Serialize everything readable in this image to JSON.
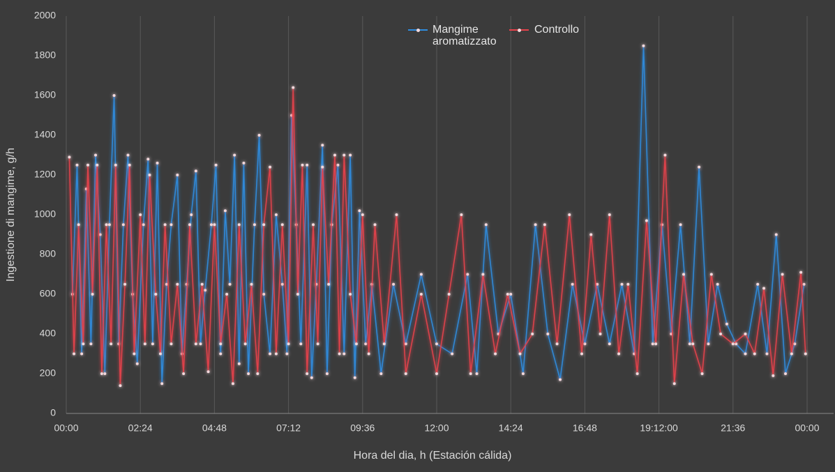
{
  "chart_data": {
    "type": "line",
    "xlabel": "Hora del dia, h (Estación cálida)",
    "ylabel": "Ingestione di mangime, g/h",
    "xlim": [
      0,
      24
    ],
    "ylim": [
      0,
      2000
    ],
    "xticks": [
      {
        "value": 0,
        "label": "00:00"
      },
      {
        "value": 2.4,
        "label": "02:24"
      },
      {
        "value": 4.8,
        "label": "04:48"
      },
      {
        "value": 7.2,
        "label": "07:12"
      },
      {
        "value": 9.6,
        "label": "09:36"
      },
      {
        "value": 12,
        "label": "12:00"
      },
      {
        "value": 14.4,
        "label": "14:24"
      },
      {
        "value": 16.8,
        "label": "16:48"
      },
      {
        "value": 19.2,
        "label": "19:12:00"
      },
      {
        "value": 21.6,
        "label": "21:36"
      },
      {
        "value": 24,
        "label": "00:00"
      }
    ],
    "yticks": [
      0,
      200,
      400,
      600,
      800,
      1000,
      1200,
      1400,
      1600,
      1800,
      2000
    ],
    "grid": true,
    "legend": "top",
    "series": [
      {
        "name": "Mangime aromatizzato",
        "color": "#2f8de0",
        "x": [
          0.2,
          0.35,
          0.5,
          0.65,
          0.8,
          0.95,
          1.1,
          1.25,
          1.4,
          1.55,
          1.7,
          1.85,
          2.0,
          2.15,
          2.3,
          2.5,
          2.65,
          2.8,
          2.95,
          3.1,
          3.25,
          3.4,
          3.6,
          3.75,
          3.9,
          4.05,
          4.2,
          4.35,
          4.5,
          4.7,
          4.85,
          5.0,
          5.15,
          5.3,
          5.45,
          5.6,
          5.75,
          5.9,
          6.1,
          6.25,
          6.4,
          6.6,
          6.8,
          7.0,
          7.15,
          7.3,
          7.45,
          7.6,
          7.8,
          7.95,
          8.1,
          8.3,
          8.45,
          8.6,
          8.8,
          9.0,
          9.2,
          9.35,
          9.5,
          9.7,
          9.9,
          10.2,
          10.6,
          11.0,
          11.5,
          12.0,
          12.5,
          13.0,
          13.3,
          13.6,
          14.0,
          14.4,
          14.8,
          15.2,
          15.6,
          16.0,
          16.4,
          16.8,
          17.2,
          17.6,
          18.0,
          18.4,
          18.7,
          19.0,
          19.3,
          19.6,
          19.9,
          20.2,
          20.5,
          20.8,
          21.1,
          21.4,
          21.7,
          22.0,
          22.4,
          22.7,
          23.0,
          23.3,
          23.6,
          23.9
        ],
        "values": [
          600,
          1250,
          300,
          1130,
          350,
          1300,
          900,
          200,
          950,
          1600,
          350,
          950,
          1300,
          600,
          250,
          950,
          1280,
          350,
          1260,
          150,
          650,
          950,
          1200,
          300,
          650,
          1000,
          1220,
          350,
          620,
          950,
          1250,
          300,
          1020,
          650,
          1300,
          250,
          1260,
          200,
          950,
          1400,
          600,
          300,
          1000,
          650,
          300,
          1500,
          950,
          350,
          1250,
          180,
          650,
          1350,
          200,
          950,
          1250,
          300,
          1300,
          180,
          1020,
          350,
          650,
          200,
          650,
          350,
          700,
          350,
          300,
          700,
          200,
          950,
          400,
          600,
          200,
          950,
          400,
          170,
          650,
          350,
          650,
          350,
          650,
          300,
          1850,
          350,
          950,
          400,
          950,
          350,
          1240,
          350,
          650,
          450,
          350,
          300,
          650,
          300,
          900,
          200,
          350,
          650
        ]
      },
      {
        "name": "Controllo",
        "color": "#e8414b",
        "x": [
          0.1,
          0.25,
          0.4,
          0.55,
          0.7,
          0.85,
          1.0,
          1.15,
          1.3,
          1.45,
          1.6,
          1.75,
          1.9,
          2.05,
          2.2,
          2.4,
          2.55,
          2.7,
          2.9,
          3.05,
          3.2,
          3.4,
          3.6,
          3.8,
          4.0,
          4.2,
          4.4,
          4.6,
          4.8,
          5.0,
          5.2,
          5.4,
          5.6,
          5.8,
          6.0,
          6.2,
          6.4,
          6.6,
          6.8,
          7.0,
          7.2,
          7.35,
          7.5,
          7.65,
          7.8,
          8.0,
          8.15,
          8.3,
          8.5,
          8.7,
          8.85,
          9.0,
          9.2,
          9.4,
          9.6,
          9.8,
          10.0,
          10.3,
          10.7,
          11.0,
          11.5,
          12.0,
          12.4,
          12.8,
          13.1,
          13.5,
          13.9,
          14.3,
          14.7,
          15.1,
          15.5,
          15.9,
          16.3,
          16.7,
          17.0,
          17.3,
          17.6,
          17.9,
          18.2,
          18.5,
          18.8,
          19.1,
          19.4,
          19.7,
          20.0,
          20.3,
          20.6,
          20.9,
          21.2,
          21.6,
          22.0,
          22.3,
          22.6,
          22.9,
          23.2,
          23.5,
          23.8,
          23.95
        ],
        "values": [
          1290,
          300,
          950,
          350,
          1250,
          600,
          1250,
          200,
          950,
          350,
          1250,
          140,
          650,
          1250,
          300,
          1000,
          350,
          1200,
          600,
          300,
          950,
          350,
          650,
          200,
          950,
          350,
          650,
          210,
          950,
          350,
          600,
          150,
          950,
          350,
          650,
          200,
          950,
          1240,
          300,
          950,
          350,
          1640,
          600,
          1250,
          200,
          950,
          350,
          1240,
          650,
          1300,
          300,
          1300,
          600,
          350,
          1000,
          300,
          950,
          350,
          1000,
          200,
          600,
          200,
          600,
          1000,
          200,
          700,
          300,
          600,
          300,
          400,
          950,
          350,
          1000,
          300,
          900,
          400,
          1000,
          300,
          650,
          200,
          970,
          350,
          1300,
          150,
          700,
          350,
          200,
          700,
          400,
          350,
          400,
          300,
          630,
          190,
          700,
          300,
          710,
          300
        ]
      }
    ]
  }
}
